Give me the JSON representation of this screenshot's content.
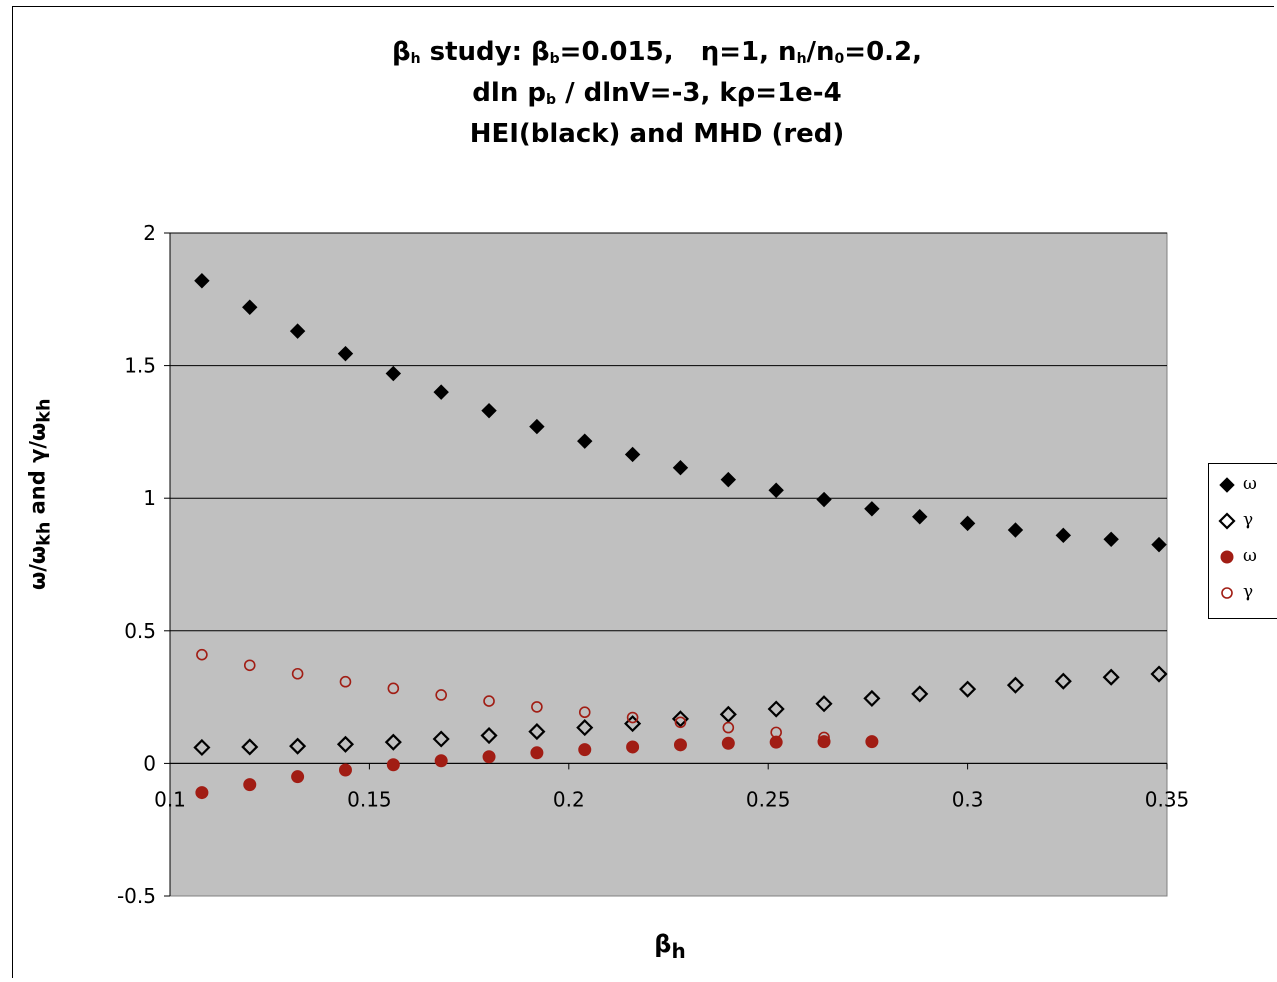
{
  "title": {
    "line1_html": "β<sub>h</sub> study: β<sub>b</sub>=0.015, &nbsp;&nbsp;η=1, n<sub>h</sub>/n<sub>0</sub>=0.2,",
    "line2_html": "dln p<sub>b</sub> / dlnV=-3, kρ=1e-4",
    "line3": "HEI(black) and MHD (red)"
  },
  "ylabel_html": "ω/ω<sub>kh</sub> and γ/ω<sub>kh</sub>",
  "xlabel_html": "β<sub>h</sub>",
  "colors": {
    "black": "#000000",
    "red": "#a11d14",
    "plot_bg": "#c0c0c0",
    "grid": "#000000"
  },
  "chart_data": {
    "type": "scatter",
    "xlim": [
      0.1,
      0.35
    ],
    "ylim": [
      -0.5,
      2
    ],
    "xticks": [
      0.1,
      0.15,
      0.2,
      0.25,
      0.3,
      0.35
    ],
    "xtick_labels": [
      "0.1",
      "0.15",
      "0.2",
      "0.25",
      "0.3",
      "0.35"
    ],
    "yticks": [
      -0.5,
      0,
      0.5,
      1,
      1.5,
      2
    ],
    "ytick_labels": [
      "-0.5",
      "0",
      "0.5",
      "1",
      "1.5",
      "2"
    ],
    "grid": true,
    "legend_placement": "right",
    "series": [
      {
        "name": "ω",
        "marker": "diamond-filled",
        "color": "#000000",
        "x": [
          0.108,
          0.12,
          0.132,
          0.144,
          0.156,
          0.168,
          0.18,
          0.192,
          0.204,
          0.216,
          0.228,
          0.24,
          0.252,
          0.264,
          0.276,
          0.288,
          0.3,
          0.312,
          0.324,
          0.336,
          0.348
        ],
        "y": [
          1.82,
          1.72,
          1.63,
          1.545,
          1.47,
          1.4,
          1.33,
          1.27,
          1.215,
          1.165,
          1.115,
          1.07,
          1.03,
          0.995,
          0.96,
          0.93,
          0.905,
          0.88,
          0.86,
          0.845,
          0.825
        ]
      },
      {
        "name": "γ",
        "marker": "diamond-open",
        "color": "#000000",
        "x": [
          0.108,
          0.12,
          0.132,
          0.144,
          0.156,
          0.168,
          0.18,
          0.192,
          0.204,
          0.216,
          0.228,
          0.24,
          0.252,
          0.264,
          0.276,
          0.288,
          0.3,
          0.312,
          0.324,
          0.336,
          0.348
        ],
        "y": [
          0.06,
          0.062,
          0.065,
          0.072,
          0.08,
          0.092,
          0.105,
          0.12,
          0.135,
          0.15,
          0.168,
          0.185,
          0.205,
          0.225,
          0.245,
          0.262,
          0.28,
          0.295,
          0.31,
          0.325,
          0.337
        ]
      },
      {
        "name": "ω",
        "marker": "circle-filled",
        "color": "#a11d14",
        "x": [
          0.108,
          0.12,
          0.132,
          0.144,
          0.156,
          0.168,
          0.18,
          0.192,
          0.204,
          0.216,
          0.228,
          0.24,
          0.252,
          0.264,
          0.276
        ],
        "y": [
          -0.11,
          -0.08,
          -0.05,
          -0.025,
          -0.005,
          0.01,
          0.025,
          0.04,
          0.052,
          0.062,
          0.07,
          0.076,
          0.08,
          0.082,
          0.082
        ]
      },
      {
        "name": "γ",
        "marker": "circle-open",
        "color": "#a11d14",
        "x": [
          0.108,
          0.12,
          0.132,
          0.144,
          0.156,
          0.168,
          0.18,
          0.192,
          0.204,
          0.216,
          0.228,
          0.24,
          0.252,
          0.264
        ],
        "y": [
          0.41,
          0.37,
          0.338,
          0.308,
          0.283,
          0.258,
          0.235,
          0.213,
          0.193,
          0.173,
          0.155,
          0.135,
          0.117,
          0.098
        ]
      }
    ]
  }
}
